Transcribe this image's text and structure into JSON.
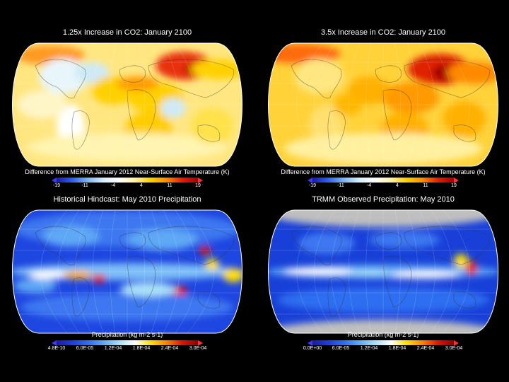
{
  "panels": [
    {
      "id": "tl",
      "title": "1.25x Increase in CO2:  January 2100",
      "kind": "temp",
      "colorbar": {
        "label": "Difference from MERRA January 2012 Near-Surface Air Temperature (K)",
        "ticks": [
          "-19",
          "-11",
          "-4",
          "4",
          "11",
          "19"
        ]
      }
    },
    {
      "id": "tr",
      "title": "3.5x Increase in CO2:  January 2100",
      "kind": "temp-hot",
      "colorbar": {
        "label": "Difference from MERRA January 2012 Near-Surface Air Temperature (K)",
        "ticks": [
          "-19",
          "-11",
          "-4",
          "4",
          "11",
          "19"
        ]
      }
    },
    {
      "id": "bl",
      "title": "Historical Hindcast:  May 2010 Precipitation",
      "kind": "precip",
      "colorbar": {
        "label": "Precipitation (kg m-2 s-1)",
        "ticks": [
          "4.8E-10",
          "6.0E-05",
          "1.2E-04",
          "1.8E-04",
          "2.4E-04",
          "3.0E-04"
        ]
      }
    },
    {
      "id": "br",
      "title": "TRMM Observed Precipitation:  May 2010",
      "kind": "precip-obs",
      "colorbar": {
        "label": "Precipitation (kg m-2 s-1)",
        "ticks": [
          "0.0E+00",
          "6.0E-05",
          "1.2E-04",
          "1.8E-04",
          "2.4E-04",
          "3.0E-04"
        ]
      }
    }
  ],
  "colors": {
    "temp_scale": [
      "#1a1aa0",
      "#2e5ff0",
      "#7fb6f0",
      "#d8f0f8",
      "#ffffff",
      "#fff3a0",
      "#ffd000",
      "#ff8a00",
      "#e02000",
      "#a00000"
    ],
    "precip_scale": [
      "#1a1aa0",
      "#1e3ce0",
      "#2f6ef0",
      "#5fa8f5",
      "#a8e0f8",
      "#ffffff",
      "#ffe000",
      "#ff8000",
      "#e81000",
      "#8b0000"
    ],
    "arrow_low": "#3a3aff",
    "arrow_high": "#ff3030",
    "missing": "#bfbfbf"
  }
}
